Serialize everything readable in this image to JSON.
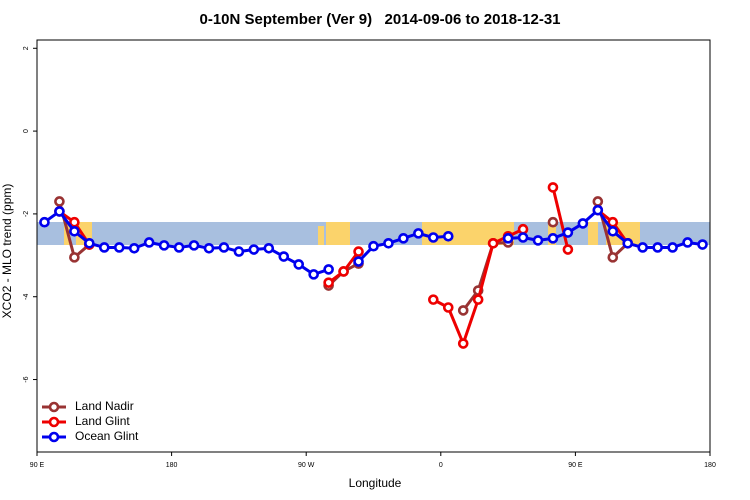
{
  "chart_data": {
    "type": "line",
    "title": "0-10N September (Ver 9)   2014-09-06 to 2018-12-31",
    "x_label": "Longitude",
    "y_label": "XCO2 - MLO trend (ppm)",
    "xlim": [
      90,
      540
    ],
    "ylim": [
      -7.75,
      2.2
    ],
    "xticks": [
      {
        "value": 90,
        "label": "90 E"
      },
      180,
      {
        "value": 270,
        "label": "90 W"
      },
      {
        "value": 360,
        "label": "0"
      },
      {
        "value": 450,
        "label": "90 E"
      },
      {
        "value": 540,
        "label": "180"
      }
    ],
    "yticks": [
      2,
      0,
      -2,
      -4,
      -6
    ],
    "legend": "bottom-left",
    "x": [
      95,
      105,
      115,
      125,
      135,
      145,
      155,
      165,
      175,
      185,
      195,
      205,
      215,
      225,
      235,
      245,
      255,
      265,
      275,
      285,
      295,
      305,
      315,
      325,
      335,
      345,
      355,
      365,
      375,
      385,
      395,
      405,
      415,
      425,
      435,
      445,
      455,
      465,
      475,
      485,
      495,
      505,
      515,
      525,
      535
    ],
    "series": [
      {
        "name": "Land Nadir",
        "color": "#993333",
        "values": [
          null,
          -1.7,
          -3.05,
          -2.74,
          null,
          null,
          null,
          null,
          null,
          null,
          null,
          null,
          null,
          null,
          null,
          null,
          null,
          null,
          null,
          -3.73,
          -3.39,
          -3.2,
          null,
          null,
          null,
          null,
          null,
          null,
          -4.33,
          -3.85,
          -2.71,
          -2.69,
          null,
          null,
          -2.2,
          null,
          null,
          -1.7,
          -3.05,
          -2.71,
          null,
          null,
          null,
          null,
          null
        ]
      },
      {
        "name": "Land Glint",
        "color": "#ee0000",
        "values": [
          null,
          -1.94,
          -2.2,
          -2.74,
          null,
          null,
          null,
          null,
          null,
          null,
          null,
          null,
          null,
          null,
          null,
          null,
          null,
          null,
          null,
          -3.66,
          -3.39,
          -2.91,
          null,
          null,
          null,
          null,
          -4.07,
          -4.26,
          -5.13,
          -4.07,
          -2.71,
          -2.54,
          -2.37,
          null,
          -1.36,
          -2.86,
          null,
          -1.91,
          -2.2,
          -2.71,
          null,
          null,
          null,
          null,
          null
        ]
      },
      {
        "name": "Ocean Glint",
        "color": "#0000ee",
        "values": [
          -2.2,
          -1.94,
          -2.42,
          -2.71,
          -2.81,
          -2.81,
          -2.83,
          -2.69,
          -2.76,
          -2.81,
          -2.76,
          -2.83,
          -2.81,
          -2.91,
          -2.86,
          -2.83,
          -3.03,
          -3.22,
          -3.46,
          -3.34,
          null,
          -3.15,
          -2.78,
          -2.71,
          -2.59,
          -2.47,
          -2.57,
          -2.54,
          null,
          null,
          null,
          -2.59,
          -2.57,
          -2.64,
          -2.59,
          -2.45,
          -2.23,
          -1.91,
          -2.42,
          -2.71,
          -2.81,
          -2.81,
          -2.81,
          -2.69,
          -2.74
        ]
      }
    ]
  }
}
